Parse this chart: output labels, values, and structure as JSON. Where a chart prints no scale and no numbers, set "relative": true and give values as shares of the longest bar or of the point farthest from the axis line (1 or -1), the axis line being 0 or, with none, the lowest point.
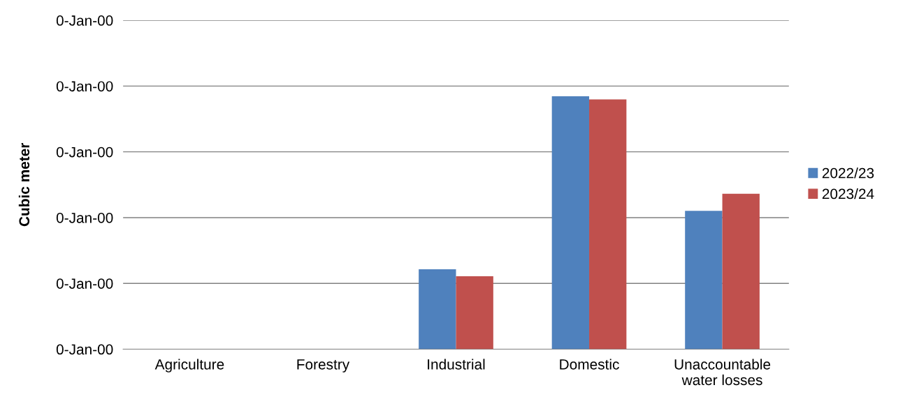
{
  "chart_data": {
    "type": "bar",
    "relative": true,
    "categories": [
      "Agriculture",
      "Forestry",
      "Industrial",
      "Domestic",
      "Unaccountable\nwater losses"
    ],
    "series": [
      {
        "name": "2022/23",
        "color": "#4f81bd",
        "values": [
          0,
          0,
          0.316,
          1,
          0.547
        ]
      },
      {
        "name": "2023/24",
        "color": "#c0504d",
        "values": [
          0,
          0,
          0.288,
          0.987,
          0.614
        ]
      }
    ],
    "annotations": [
      "Cubic meter",
      "0-Jan-00",
      "0-Jan-00",
      "0-Jan-00",
      "0-Jan-00",
      "0-Jan-00",
      "0-Jan-00"
    ],
    "grid": "y",
    "legend": "right"
  }
}
